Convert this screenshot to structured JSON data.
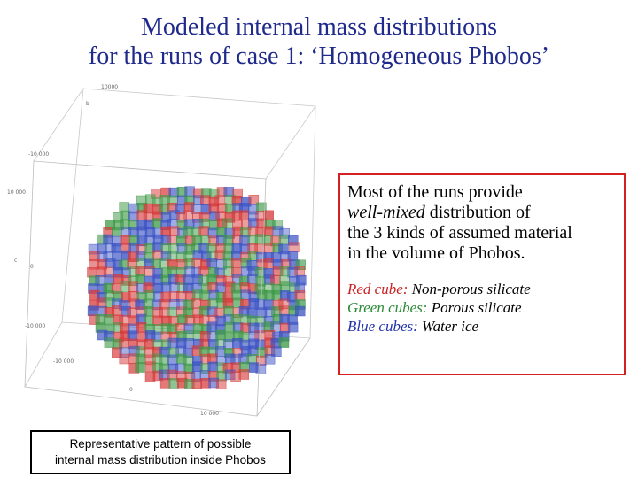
{
  "title": {
    "line1": "Modeled internal mass distributions",
    "line2": "for the runs of case 1: ‘Homogeneous Phobos’"
  },
  "plot": {
    "axis_ticks": [
      "10000",
      "b",
      "-10 000",
      "10 000",
      "c",
      "0",
      "-10 000",
      "-10 000",
      "0",
      "10 000"
    ],
    "colors": {
      "red": "#d63a3a",
      "green": "#3f9a48",
      "blue": "#3e55c4"
    }
  },
  "info": {
    "lines": [
      {
        "pre": "Most of the runs provide",
        "em": "",
        "post": ""
      },
      {
        "pre": "",
        "em": "well-mixed",
        "post": " distribution of"
      },
      {
        "pre": "the 3 kinds of assumed material",
        "em": "",
        "post": ""
      },
      {
        "pre": "in the volume of Phobos.",
        "em": "",
        "post": ""
      }
    ],
    "legend": [
      {
        "label": "Red cube:",
        "text": " Non-porous silicate",
        "color": "#cc2222"
      },
      {
        "label": "Green cubes:",
        "text": " Porous silicate",
        "color": "#2a8a36"
      },
      {
        "label": "Blue cubes:",
        "text": " Water ice",
        "color": "#2233aa"
      }
    ]
  },
  "caption": {
    "line1": "Representative pattern of possible",
    "line2": "internal mass distribution inside Phobos"
  }
}
